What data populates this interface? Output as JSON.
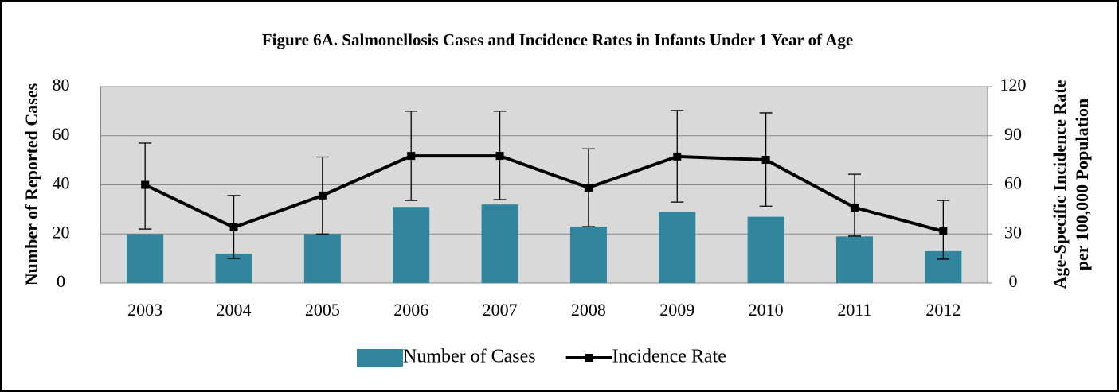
{
  "chart_data": {
    "type": "bar_line",
    "title": "Figure 6A. Salmonellosis Cases and Incidence Rates in Infants Under 1 Year of Age",
    "ylabel": "Number of Reported Cases",
    "y2label": [
      "Age-Specific Incidence Rate",
      "per 100,000 Population"
    ],
    "categories": [
      "2003",
      "2004",
      "2005",
      "2006",
      "2007",
      "2008",
      "2009",
      "2010",
      "2011",
      "2012"
    ],
    "series": [
      {
        "name": "Number of Cases",
        "type": "bar",
        "color": "#31859c",
        "values": [
          20,
          12,
          20,
          31,
          32,
          23,
          29,
          27,
          19,
          13
        ]
      },
      {
        "name": "Incidence Rate",
        "type": "line",
        "axis": "y2",
        "color": "#000000",
        "values": [
          60,
          34,
          53.5,
          77.7,
          77.7,
          58.3,
          77.3,
          75.3,
          46.2,
          31.6
        ],
        "lower": [
          33,
          15,
          30,
          50.5,
          51,
          34.5,
          49.5,
          47,
          28.7,
          14.6
        ],
        "upper": [
          85.5,
          53.5,
          77,
          105,
          105,
          82,
          105.5,
          104,
          66.5,
          50.5
        ]
      }
    ],
    "ylim": [
      0,
      80
    ],
    "yticks": [
      0,
      20,
      40,
      60,
      80
    ],
    "y2lim": [
      0,
      120
    ],
    "y2ticks": [
      0,
      30,
      60,
      90,
      120
    ],
    "grid": true,
    "legend": "bottom"
  }
}
